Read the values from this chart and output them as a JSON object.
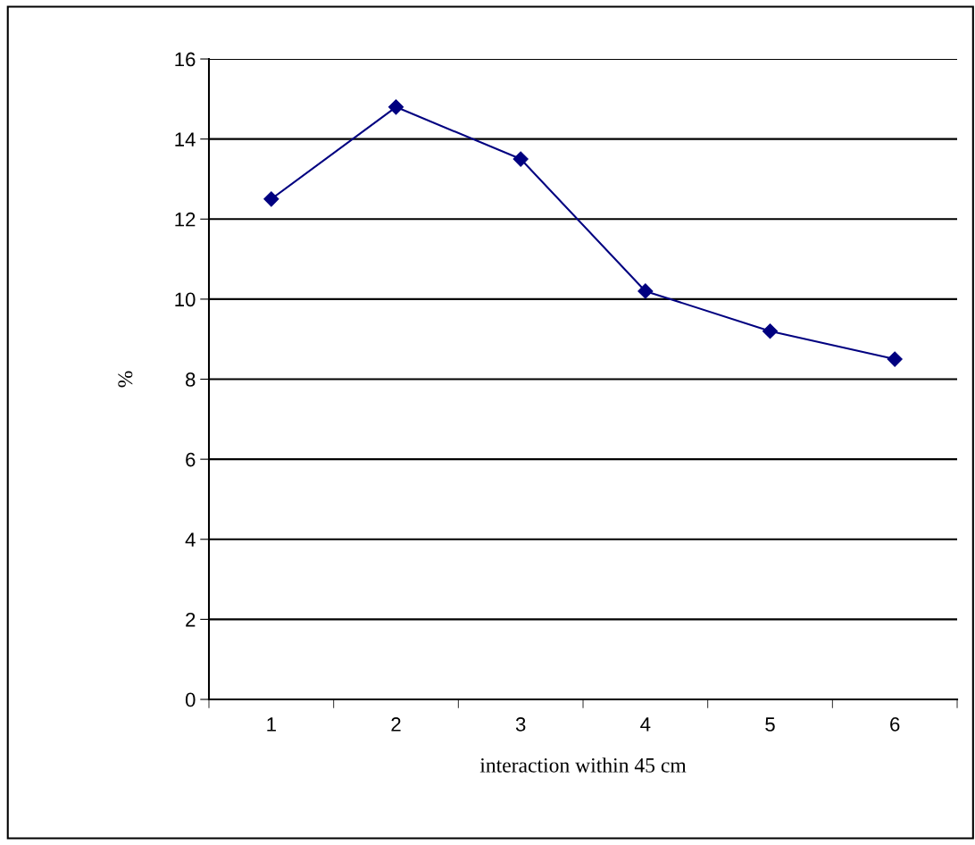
{
  "chart_data": {
    "type": "line",
    "xlabel": "interaction within 45 cm",
    "ylabel": "%",
    "categories": [
      "1",
      "2",
      "3",
      "4",
      "5",
      "6"
    ],
    "series": [
      {
        "color": "#000080",
        "values": [
          12.5,
          14.8,
          13.5,
          10.2,
          9.2,
          8.5
        ]
      }
    ],
    "ylim": [
      0,
      16
    ],
    "yticks": [
      0,
      2,
      4,
      6,
      8,
      10,
      12,
      14,
      16
    ],
    "grid": "y",
    "marker": "diamond",
    "line_style": "solid"
  }
}
